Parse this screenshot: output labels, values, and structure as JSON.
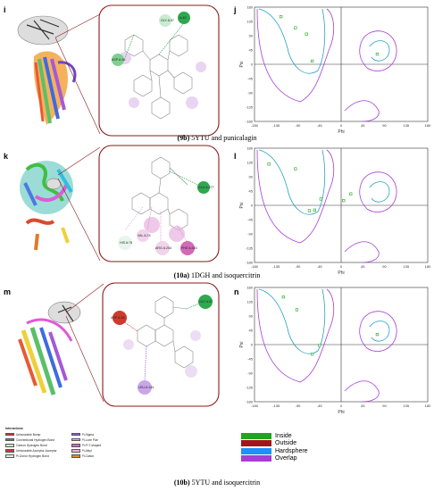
{
  "panels": {
    "i": "i",
    "j": "j",
    "k": "k",
    "l": "l",
    "m": "m",
    "n": "n"
  },
  "captions": [
    {
      "id": "(9b)",
      "text": "5YTU and punicalagin"
    },
    {
      "id": "(10a)",
      "text": "1DGH and isoquercitrin"
    },
    {
      "id": "(10b)",
      "text": "5YTU and isoquercitrin"
    }
  ],
  "rama_axes": {
    "xlabel": "Phi",
    "ylabel": "Psi",
    "xticks": [
      "-180",
      "-135",
      "-90",
      "-45",
      "0",
      "45",
      "90",
      "135",
      "180"
    ],
    "yticks": [
      "180",
      "135",
      "90",
      "45",
      "0",
      "-45",
      "-90",
      "-135",
      "-180"
    ]
  },
  "interaction_nodes": {
    "i": [
      {
        "label": "GLY A:37",
        "kind": "conventional-hbond"
      },
      {
        "label": "A:40",
        "kind": "conventional-hbond"
      },
      {
        "label": "ASP A:38",
        "kind": "conventional-hbond"
      }
    ],
    "k": [
      {
        "label": "GLU A:277",
        "kind": "conventional-hbond"
      },
      {
        "label": "HIS A:75",
        "kind": "pi-alkyl"
      },
      {
        "label": "VAL A:74",
        "kind": "pi-alkyl"
      },
      {
        "label": "ARG A:254",
        "kind": "pi-alkyl"
      },
      {
        "label": "PHE A:363",
        "kind": "pi-pi-t-shaped"
      }
    ],
    "m": [
      {
        "label": "ASP A:38",
        "kind": "unfavorable-bump"
      },
      {
        "label": "GLY A:37",
        "kind": "conventional-hbond"
      },
      {
        "label": "LEU A:144",
        "kind": "pi-sigma"
      }
    ]
  },
  "interactions_legend": {
    "title": "Interactions",
    "col1": [
      {
        "label": "Unfavorable Bump",
        "color": "#cc3b2b"
      },
      {
        "label": "Conventional Hydrogen Bond",
        "color": "#2fa84f"
      },
      {
        "label": "Carbon Hydrogen Bond",
        "color": "#c7ecd0"
      },
      {
        "label": "Unfavorable Acceptor-Acceptor",
        "color": "#d83535"
      },
      {
        "label": "Pi-Donor Hydrogen Bond",
        "color": "#d9f2e0"
      }
    ],
    "col2": [
      {
        "label": "Pi-Sigma",
        "color": "#9b59d6"
      },
      {
        "label": "Pi-Lone Pair",
        "color": "#d9d35a"
      },
      {
        "label": "Pi-Pi T-shaped",
        "color": "#d36ab8"
      },
      {
        "label": "Pi-Alkyl",
        "color": "#e9b3e0"
      },
      {
        "label": "Pi-Cation",
        "color": "#e08b2a"
      }
    ]
  },
  "rama_legend": [
    {
      "label": "Inside",
      "color": "#1fa51f"
    },
    {
      "label": "Outside",
      "color": "#a5141b"
    },
    {
      "label": "Hardsphere",
      "color": "#1e90ff"
    },
    {
      "label": "Overlap",
      "color": "#a63dd6"
    }
  ],
  "rama_points": {
    "j": [
      [
        -125,
        150
      ],
      [
        -95,
        115
      ],
      [
        -72,
        95
      ],
      [
        -60,
        10
      ],
      [
        75,
        32
      ]
    ],
    "l": [
      [
        -150,
        130
      ],
      [
        -95,
        115
      ],
      [
        -42,
        20
      ],
      [
        -66,
        -17
      ],
      [
        -55,
        -15
      ],
      [
        20,
        36
      ],
      [
        5,
        15
      ]
    ],
    "n": [
      [
        -120,
        150
      ],
      [
        -92,
        110
      ],
      [
        -45,
        -2
      ],
      [
        -60,
        -30
      ],
      [
        75,
        32
      ]
    ]
  },
  "colors": {
    "frame": "#8b1a1a",
    "hardsphere_contour": "#2aa0c8",
    "overlap_contour": "#a63dd6",
    "point": "#1fa51f"
  }
}
